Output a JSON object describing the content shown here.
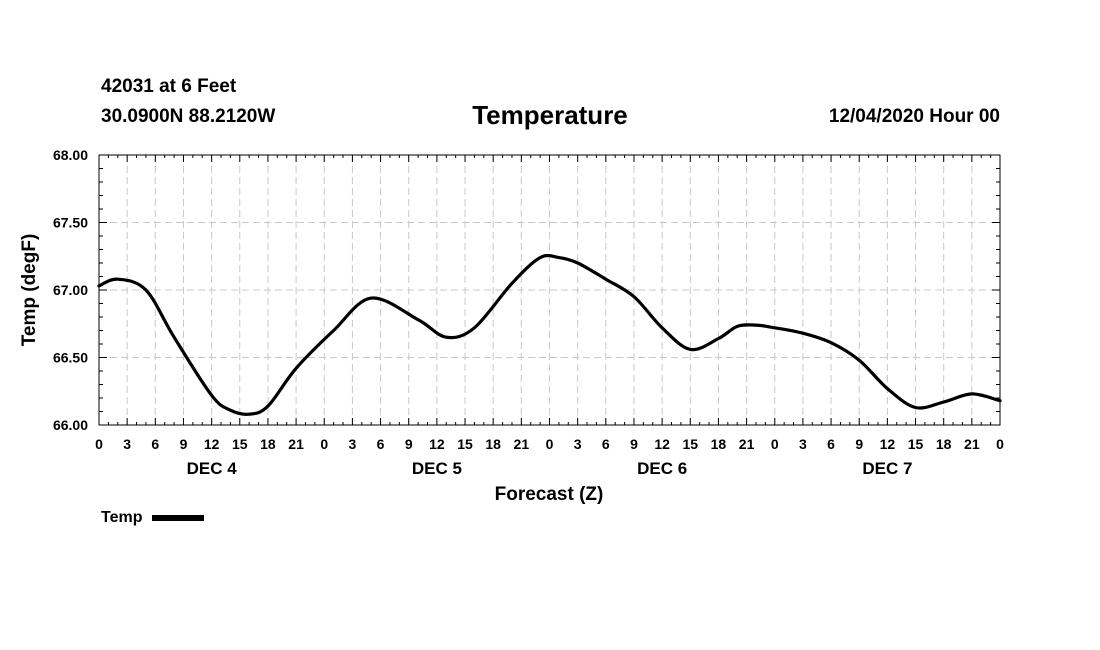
{
  "header": {
    "station": "42031 at 6 Feet",
    "coords": "30.0900N 88.2120W",
    "cycle": "12/04/2020 Hour 00"
  },
  "legend": {
    "label": "Temp"
  },
  "chart_data": {
    "type": "line",
    "title": "Temperature",
    "xlabel": "Forecast (Z)",
    "ylabel": "Temp (degF)",
    "ylim": [
      66.0,
      68.0
    ],
    "yticks": [
      "66.00",
      "66.50",
      "67.00",
      "67.50",
      "68.00"
    ],
    "xlim_hours": [
      0,
      96
    ],
    "xtick_labels": [
      "0",
      "3",
      "6",
      "9",
      "12",
      "15",
      "18",
      "21",
      "0",
      "3",
      "6",
      "9",
      "12",
      "15",
      "18",
      "21",
      "0",
      "3",
      "6",
      "9",
      "12",
      "15",
      "18",
      "21",
      "0",
      "3",
      "6",
      "9",
      "12",
      "15",
      "18",
      "21",
      "0"
    ],
    "day_labels": [
      "DEC 4",
      "DEC 5",
      "DEC 6",
      "DEC 7"
    ],
    "grid": true,
    "line_color": "#000000",
    "series": [
      {
        "name": "Temp",
        "hours": [
          0,
          2,
          5,
          8,
          12,
          14,
          16,
          18,
          21,
          25,
          29,
          34,
          37,
          40,
          44,
          47,
          49,
          51,
          54,
          57,
          60,
          63,
          66,
          68,
          70,
          72,
          75,
          78,
          81,
          84,
          87,
          90,
          93,
          96
        ],
        "values": [
          67.03,
          67.08,
          67.0,
          66.65,
          66.22,
          66.11,
          66.08,
          66.14,
          66.42,
          66.7,
          66.94,
          66.78,
          66.65,
          66.72,
          67.05,
          67.24,
          67.24,
          67.2,
          67.08,
          66.95,
          66.72,
          66.56,
          66.64,
          66.73,
          66.74,
          66.72,
          66.68,
          66.61,
          66.48,
          66.27,
          66.13,
          66.17,
          66.23,
          66.18
        ]
      }
    ]
  }
}
